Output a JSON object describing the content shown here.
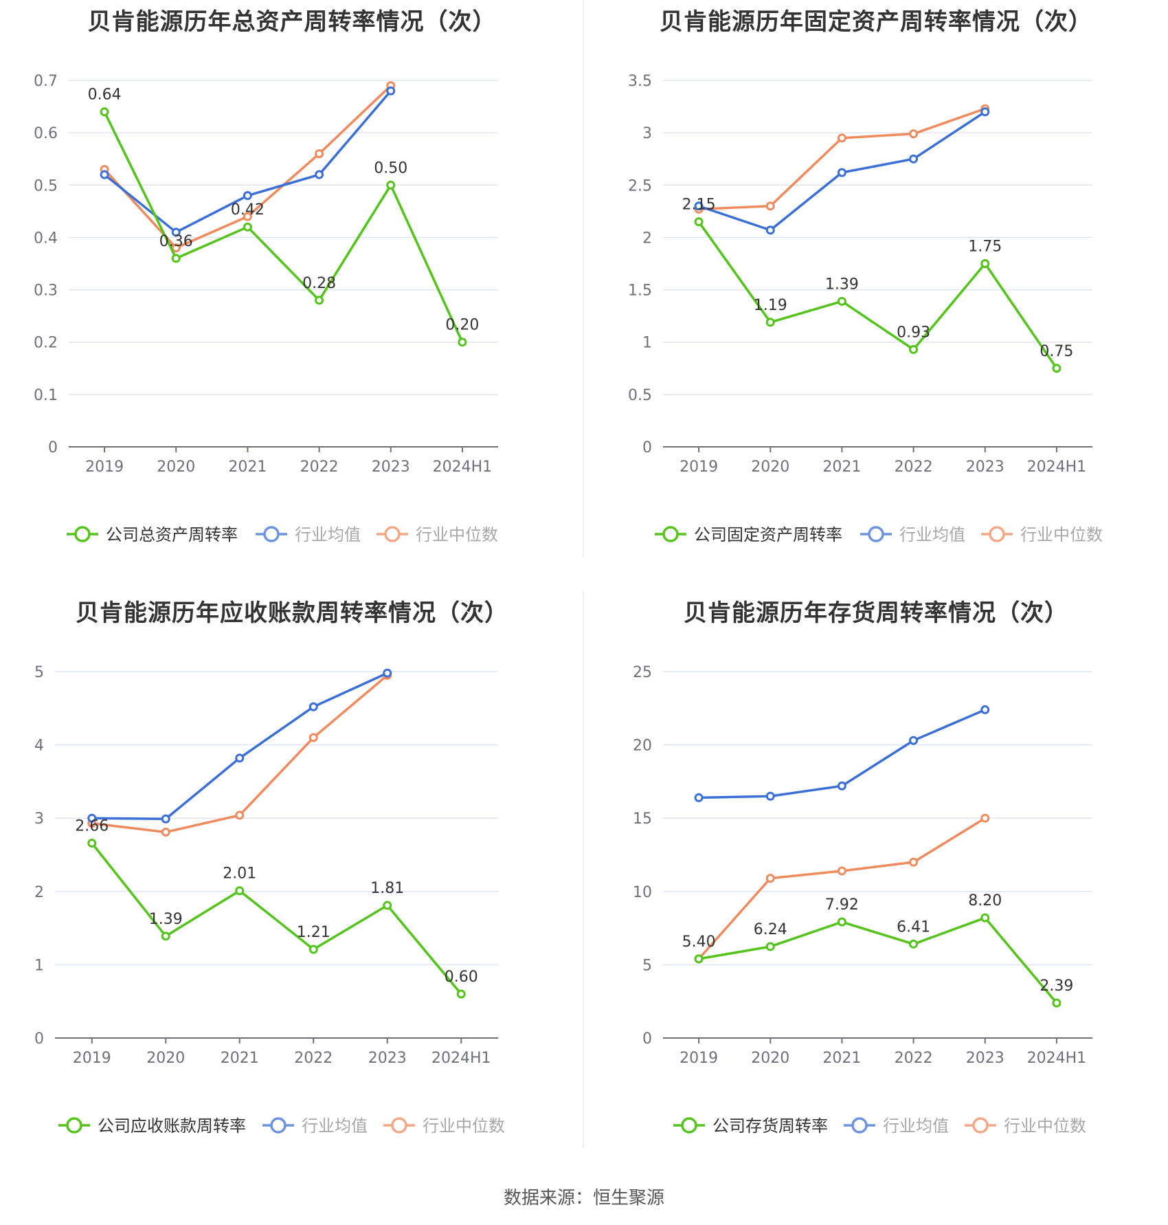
{
  "source_text": "数据来源：恒生聚源",
  "colors": {
    "company": "#52c41a",
    "industry_avg": "#3b6fd8",
    "industry_median": "#f08a5d"
  },
  "chart_data": [
    {
      "type": "line",
      "title": "贝肯能源历年总资产周转率情况（次）",
      "categories": [
        "2019",
        "2020",
        "2021",
        "2022",
        "2023",
        "2024H1"
      ],
      "ylim": [
        0,
        0.7
      ],
      "yticks": [
        0,
        0.1,
        0.2,
        0.3,
        0.4,
        0.5,
        0.6,
        0.7
      ],
      "ytick_labels": [
        "0",
        "0.1",
        "0.2",
        "0.3",
        "0.4",
        "0.5",
        "0.6",
        "0.7"
      ],
      "series": [
        {
          "name": "公司总资产周转率",
          "values": [
            0.64,
            0.36,
            0.42,
            0.28,
            0.5,
            0.2
          ],
          "labels": [
            "0.64",
            "0.36",
            "0.42",
            "0.28",
            "0.50",
            "0.20"
          ]
        },
        {
          "name": "行业均值",
          "values": [
            0.52,
            0.41,
            0.48,
            0.52,
            0.68,
            null
          ]
        },
        {
          "name": "行业中位数",
          "values": [
            0.53,
            0.38,
            0.44,
            0.56,
            0.69,
            null
          ]
        }
      ],
      "legend": "bottom",
      "grid": true
    },
    {
      "type": "line",
      "title": "贝肯能源历年固定资产周转率情况（次）",
      "categories": [
        "2019",
        "2020",
        "2021",
        "2022",
        "2023",
        "2024H1"
      ],
      "ylim": [
        0,
        3.5
      ],
      "yticks": [
        0,
        0.5,
        1,
        1.5,
        2,
        2.5,
        3,
        3.5
      ],
      "ytick_labels": [
        "0",
        "0.5",
        "1",
        "1.5",
        "2",
        "2.5",
        "3",
        "3.5"
      ],
      "series": [
        {
          "name": "公司固定资产周转率",
          "values": [
            2.15,
            1.19,
            1.39,
            0.93,
            1.75,
            0.75
          ],
          "labels": [
            "2.15",
            "1.19",
            "1.39",
            "0.93",
            "1.75",
            "0.75"
          ]
        },
        {
          "name": "行业均值",
          "values": [
            2.3,
            2.07,
            2.62,
            2.75,
            3.2,
            null
          ]
        },
        {
          "name": "行业中位数",
          "values": [
            2.27,
            2.3,
            2.95,
            2.99,
            3.23,
            null
          ]
        }
      ],
      "legend": "bottom",
      "grid": true
    },
    {
      "type": "line",
      "title": "贝肯能源历年应收账款周转率情况（次）",
      "categories": [
        "2019",
        "2020",
        "2021",
        "2022",
        "2023",
        "2024H1"
      ],
      "ylim": [
        0,
        5
      ],
      "yticks": [
        0,
        1,
        2,
        3,
        4,
        5
      ],
      "ytick_labels": [
        "0",
        "1",
        "2",
        "3",
        "4",
        "5"
      ],
      "series": [
        {
          "name": "公司应收账款周转率",
          "values": [
            2.66,
            1.39,
            2.01,
            1.21,
            1.81,
            0.6
          ],
          "labels": [
            "2.66",
            "1.39",
            "2.01",
            "1.21",
            "1.81",
            "0.60"
          ]
        },
        {
          "name": "行业均值",
          "values": [
            3.0,
            2.99,
            3.82,
            4.52,
            4.98,
            null
          ]
        },
        {
          "name": "行业中位数",
          "values": [
            2.93,
            2.81,
            3.04,
            4.1,
            4.95,
            null
          ]
        }
      ],
      "legend": "bottom",
      "grid": true
    },
    {
      "type": "line",
      "title": "贝肯能源历年存货周转率情况（次）",
      "categories": [
        "2019",
        "2020",
        "2021",
        "2022",
        "2023",
        "2024H1"
      ],
      "ylim": [
        0,
        25
      ],
      "yticks": [
        0,
        5,
        10,
        15,
        20,
        25
      ],
      "ytick_labels": [
        "0",
        "5",
        "10",
        "15",
        "20",
        "25"
      ],
      "series": [
        {
          "name": "公司存货周转率",
          "values": [
            5.4,
            6.24,
            7.92,
            6.41,
            8.2,
            2.39
          ],
          "labels": [
            "5.40",
            "6.24",
            "7.92",
            "6.41",
            "8.20",
            "2.39"
          ]
        },
        {
          "name": "行业均值",
          "values": [
            16.4,
            16.5,
            17.2,
            20.3,
            22.4,
            null
          ]
        },
        {
          "name": "行业中位数",
          "values": [
            5.4,
            10.9,
            11.4,
            12.0,
            15.0,
            null
          ]
        }
      ],
      "legend": "bottom",
      "grid": true
    }
  ]
}
